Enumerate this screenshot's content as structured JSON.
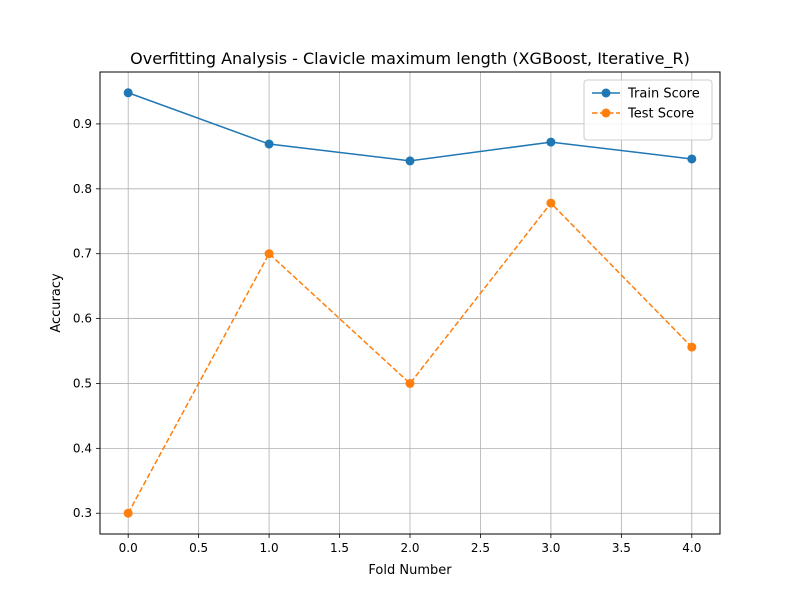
{
  "chart_data": {
    "type": "line",
    "title": "Overfitting Analysis - Clavicle maximum length (XGBoost, Iterative_R)",
    "xlabel": "Fold Number",
    "ylabel": "Accuracy",
    "x": [
      0,
      1,
      2,
      3,
      4
    ],
    "xlim": [
      -0.2,
      4.2
    ],
    "ylim": [
      0.268,
      0.98
    ],
    "xticks": [
      0.0,
      0.5,
      1.0,
      1.5,
      2.0,
      2.5,
      3.0,
      3.5,
      4.0
    ],
    "xtick_labels": [
      "0.0",
      "0.5",
      "1.0",
      "1.5",
      "2.0",
      "2.5",
      "3.0",
      "3.5",
      "4.0"
    ],
    "yticks": [
      0.3,
      0.4,
      0.5,
      0.6,
      0.7,
      0.8,
      0.9
    ],
    "ytick_labels": [
      "0.3",
      "0.4",
      "0.5",
      "0.6",
      "0.7",
      "0.8",
      "0.9"
    ],
    "grid": true,
    "legend_position": "top-right",
    "series": [
      {
        "name": "Train Score",
        "values": [
          0.948,
          0.869,
          0.843,
          0.872,
          0.846
        ],
        "color": "#1f77b4",
        "linestyle": "solid",
        "marker": "circle"
      },
      {
        "name": "Test Score",
        "values": [
          0.3,
          0.7,
          0.5,
          0.778,
          0.556
        ],
        "color": "#ff7f0e",
        "linestyle": "dashed",
        "marker": "circle"
      }
    ]
  }
}
